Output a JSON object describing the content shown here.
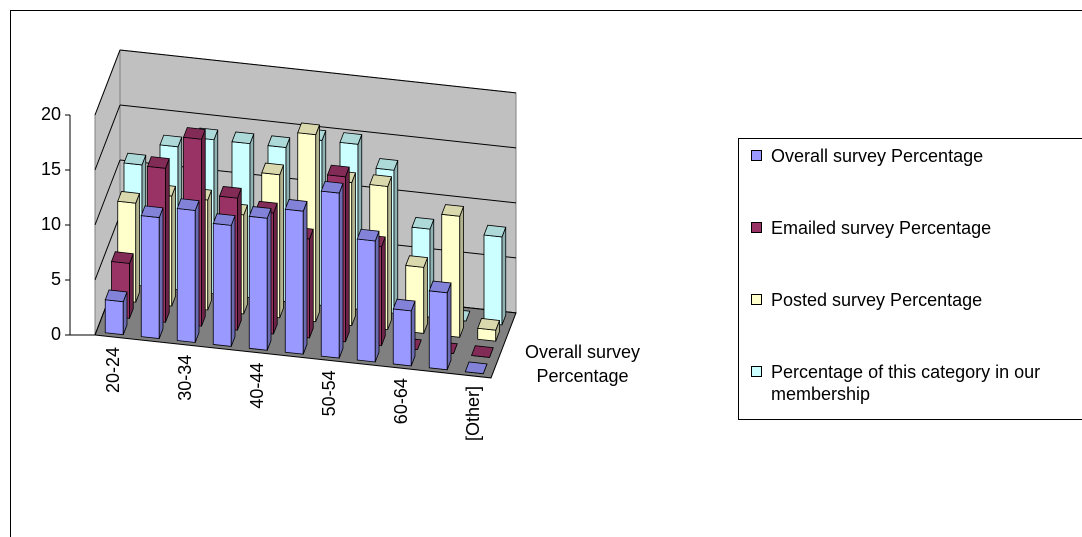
{
  "chart_data": {
    "type": "bar3d",
    "categories": [
      "20-24",
      null,
      "30-34",
      null,
      "40-44",
      null,
      "50-54",
      null,
      "60-64",
      null,
      "[Other]"
    ],
    "series": [
      {
        "name": "Overall survey Percentage",
        "color": "#9999ff",
        "values": [
          3,
          11,
          12,
          11,
          12,
          13,
          15,
          11,
          5,
          7,
          0
        ]
      },
      {
        "name": "Emailed survey Percentage",
        "color": "#993366",
        "values": [
          5,
          14,
          17,
          12,
          11,
          9,
          15,
          9,
          0,
          0,
          0
        ]
      },
      {
        "name": "Posted survey Percentage",
        "color": "#ffffcc",
        "values": [
          9,
          10,
          10,
          9,
          13,
          17,
          13,
          13,
          6,
          11,
          1
        ]
      },
      {
        "name": "Percentage of this category in our membership",
        "color": "#ccffff",
        "values": [
          11,
          13,
          14,
          14,
          14,
          15,
          15,
          13,
          8,
          0,
          8
        ]
      }
    ],
    "ylim": [
      0,
      20
    ],
    "yticks": [
      0,
      5,
      10,
      15,
      20
    ],
    "grid": true
  }
}
